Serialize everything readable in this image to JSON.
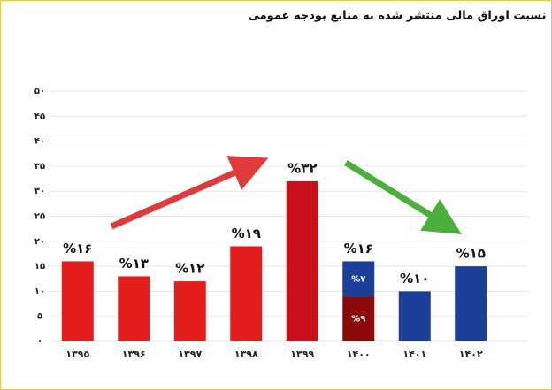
{
  "chart_data": {
    "type": "stacked-bar",
    "title": "نسبت اوراق مالی منتشر شده به منابع بودجه عمومی",
    "categories": [
      "۱۳۹۵",
      "۱۳۹۶",
      "۱۳۹۷",
      "۱۳۹۸",
      "۱۳۹۹",
      "۱۴۰۰",
      "۱۴۰۱",
      "۱۴۰۲"
    ],
    "series": [
      {
        "color": "#e41e1e",
        "colors": [
          "#e41e1e",
          "#e41e1e",
          "#e41e1e",
          "#e41e1e",
          "#c8101a",
          "#8c0a0a",
          null,
          null
        ],
        "values": [
          16,
          13,
          12,
          19,
          32,
          9,
          null,
          null
        ],
        "value_labels": [
          "%۱۶",
          "%۱۳",
          "%۱۲",
          "%۱۹",
          "%۳۲",
          "%۹",
          null,
          null
        ]
      },
      {
        "color": "#1c3f99",
        "values": [
          null,
          null,
          null,
          null,
          null,
          7,
          10,
          15
        ],
        "value_labels": [
          null,
          null,
          null,
          null,
          null,
          "%۷",
          "%۱۰",
          "%۱۵"
        ]
      }
    ],
    "totals": [
      null,
      null,
      null,
      null,
      null,
      16,
      null,
      null
    ],
    "total_labels": [
      null,
      null,
      null,
      null,
      null,
      "%۱۶",
      null,
      null
    ],
    "ylim": [
      0,
      50
    ],
    "yticks": [
      {
        "value": 0,
        "label": "۰"
      },
      {
        "value": 5,
        "label": "۵"
      },
      {
        "value": 10,
        "label": "۱۰"
      },
      {
        "value": 15,
        "label": "۱۵"
      },
      {
        "value": 20,
        "label": "۲۰"
      },
      {
        "value": 25,
        "label": "۲۵"
      },
      {
        "value": 30,
        "label": "۳۰"
      },
      {
        "value": 35,
        "label": "۳۵"
      },
      {
        "value": 40,
        "label": "۴۰"
      },
      {
        "value": 45,
        "label": "۴۵"
      },
      {
        "value": 50,
        "label": "۵۰"
      }
    ],
    "grid": true
  }
}
